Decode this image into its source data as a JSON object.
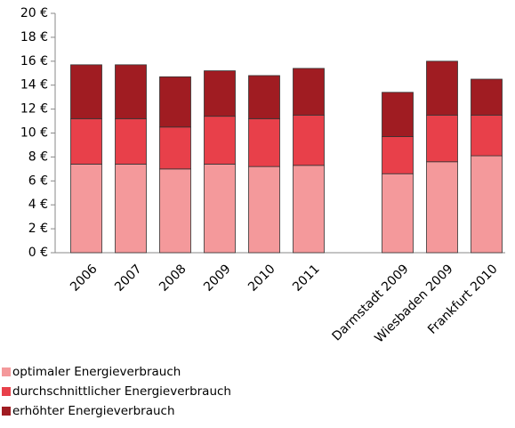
{
  "chart_data": {
    "type": "stacked_bar",
    "categories": [
      "2006",
      "2007",
      "2008",
      "2009",
      "2010",
      "2011",
      null,
      "Darmstadt 2009",
      "Wiesbaden 2009",
      "Frankfurt 2010"
    ],
    "series": [
      {
        "name": "optimaler Energieverbrauch",
        "color": "#f4999b",
        "values": [
          7.4,
          7.4,
          7.0,
          7.4,
          7.2,
          7.3,
          null,
          6.6,
          7.6,
          8.1
        ]
      },
      {
        "name": "durchschnittlicher Energieverbrauch",
        "color": "#e8404a",
        "values": [
          3.8,
          3.8,
          3.5,
          4.0,
          4.0,
          4.2,
          null,
          3.1,
          3.9,
          3.4
        ]
      },
      {
        "name": "erhöhter Energieverbrauch",
        "color": "#a01c22",
        "values": [
          4.5,
          4.5,
          4.2,
          3.8,
          3.6,
          3.9,
          null,
          3.7,
          4.5,
          3.0
        ]
      }
    ],
    "ylim": [
      0,
      20
    ],
    "yticks": [
      {
        "value": 0,
        "label": "0 €"
      },
      {
        "value": 2,
        "label": "2 €"
      },
      {
        "value": 4,
        "label": "4 €"
      },
      {
        "value": 6,
        "label": "6 €"
      },
      {
        "value": 8,
        "label": "8 €"
      },
      {
        "value": 10,
        "label": "10 €"
      },
      {
        "value": 12,
        "label": "12 €"
      },
      {
        "value": 14,
        "label": "14 €"
      },
      {
        "value": 16,
        "label": "16 €"
      },
      {
        "value": 18,
        "label": "18 €"
      },
      {
        "value": 20,
        "label": "20 €"
      }
    ],
    "grid": false,
    "legend": "bottom-left"
  }
}
